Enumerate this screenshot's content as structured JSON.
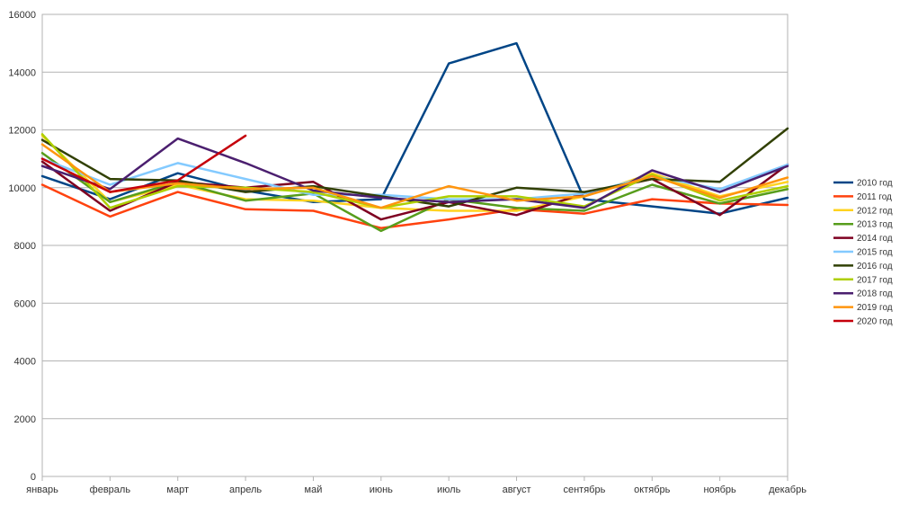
{
  "chart_data": {
    "type": "line",
    "title": "",
    "xlabel": "",
    "ylabel": "",
    "ylim": [
      0,
      16000
    ],
    "yticks": [
      0,
      2000,
      4000,
      6000,
      8000,
      10000,
      12000,
      14000,
      16000
    ],
    "grid": true,
    "legend_position": "right",
    "categories": [
      "январь",
      "февраль",
      "март",
      "апрель",
      "май",
      "июнь",
      "июль",
      "август",
      "сентябрь",
      "октябрь",
      "ноябрь",
      "декабрь"
    ],
    "series": [
      {
        "name": "2010 год",
        "color": "#004586",
        "values": [
          10400,
          9600,
          10500,
          9900,
          9500,
          9600,
          14300,
          15000,
          9600,
          9350,
          9100,
          9650
        ]
      },
      {
        "name": "2011 год",
        "color": "#ff420e",
        "values": [
          10100,
          9000,
          9850,
          9250,
          9200,
          8600,
          8900,
          9250,
          9100,
          9600,
          9450,
          9400
        ]
      },
      {
        "name": "2012 год",
        "color": "#ffd320",
        "values": [
          11800,
          9500,
          10100,
          9600,
          9550,
          9300,
          9200,
          9200,
          9700,
          10500,
          9700,
          10200
        ]
      },
      {
        "name": "2013 год",
        "color": "#579d1c",
        "values": [
          11200,
          9500,
          10200,
          9550,
          9800,
          8500,
          9600,
          9300,
          9200,
          10100,
          9450,
          9950
        ]
      },
      {
        "name": "2014 год",
        "color": "#7e0021",
        "values": [
          10900,
          9200,
          10200,
          10000,
          10200,
          8900,
          9500,
          9050,
          9800,
          10300,
          9050,
          10800
        ]
      },
      {
        "name": "2015 год",
        "color": "#83caff",
        "values": [
          11000,
          10100,
          10850,
          10300,
          9750,
          9750,
          9600,
          9600,
          9800,
          10400,
          9950,
          10800
        ]
      },
      {
        "name": "2016 год",
        "color": "#314004",
        "values": [
          11650,
          10300,
          10250,
          9850,
          10050,
          9700,
          9350,
          10000,
          9850,
          10300,
          10200,
          12050
        ]
      },
      {
        "name": "2017 год",
        "color": "#aecf00",
        "values": [
          11850,
          9300,
          10050,
          10000,
          9850,
          9300,
          9700,
          9700,
          9350,
          10450,
          9550,
          10050
        ]
      },
      {
        "name": "2018 год",
        "color": "#4b1f6f",
        "values": [
          10750,
          9950,
          11700,
          10850,
          9900,
          9650,
          9500,
          9600,
          9300,
          10600,
          9850,
          10750
        ]
      },
      {
        "name": "2019 год",
        "color": "#ff950e",
        "values": [
          11500,
          9850,
          10150,
          9950,
          10000,
          9300,
          10050,
          9550,
          9700,
          10400,
          9650,
          10350
        ]
      },
      {
        "name": "2020 год",
        "color": "#c5000b",
        "values": [
          11000,
          9850,
          10250,
          11800,
          null,
          null,
          null,
          null,
          null,
          null,
          null,
          null
        ]
      }
    ]
  }
}
